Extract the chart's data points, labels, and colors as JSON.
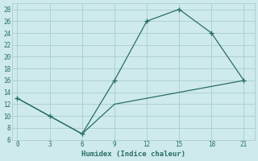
{
  "xlabel": "Humidex (Indice chaleur)",
  "line1_x": [
    0,
    3,
    6,
    9,
    12,
    15,
    18,
    21
  ],
  "line1_y": [
    13,
    10,
    7,
    16,
    26,
    28,
    24,
    16
  ],
  "line2_x": [
    0,
    3,
    6,
    9,
    12,
    15,
    18,
    21
  ],
  "line2_y": [
    13,
    10,
    7,
    12,
    13,
    14,
    15,
    16
  ],
  "line_color": "#2a6e63",
  "bg_color": "#ceeaea",
  "grid_color": "#aacece",
  "xlim": [
    -0.5,
    22
  ],
  "ylim": [
    6,
    29
  ],
  "xticks": [
    0,
    3,
    6,
    9,
    12,
    15,
    18,
    21
  ],
  "yticks": [
    6,
    8,
    10,
    12,
    14,
    16,
    18,
    20,
    22,
    24,
    26,
    28
  ],
  "tick_fontsize": 5.5,
  "xlabel_fontsize": 6.5
}
